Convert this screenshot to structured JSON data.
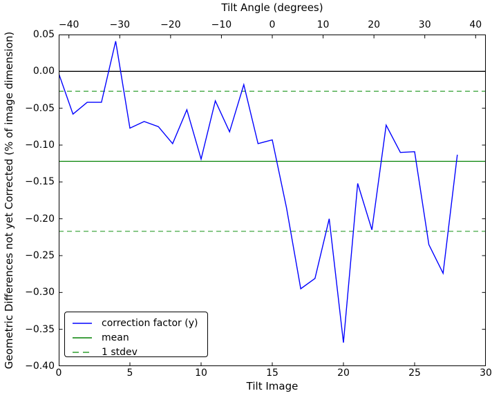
{
  "figure": {
    "background": "#ffffff"
  },
  "chart_data": {
    "type": "line",
    "top_axis": {
      "label": "Tilt Angle (degrees)",
      "range": [
        -42,
        42
      ],
      "ticks": [
        -40,
        -30,
        -20,
        -10,
        0,
        10,
        20,
        30,
        40
      ],
      "tick_labels": [
        "−40",
        "−30",
        "−20",
        "−10",
        "0",
        "10",
        "20",
        "30",
        "40"
      ]
    },
    "x_axis": {
      "label": "Tilt Image",
      "range": [
        0,
        30
      ],
      "ticks": [
        0,
        5,
        10,
        15,
        20,
        25,
        30
      ],
      "tick_labels": [
        "0",
        "5",
        "10",
        "15",
        "20",
        "25",
        "30"
      ]
    },
    "y_axis": {
      "label": "Geometric Differences not yet Corrected (% of image dimension)",
      "range": [
        -0.4,
        0.05
      ],
      "ticks": [
        0.05,
        0.0,
        -0.05,
        -0.1,
        -0.15,
        -0.2,
        -0.25,
        -0.3,
        -0.35,
        -0.4
      ],
      "tick_labels": [
        "0.05",
        "0.00",
        "−0.05",
        "−0.10",
        "−0.15",
        "−0.20",
        "−0.25",
        "−0.30",
        "−0.35",
        "−0.40"
      ]
    },
    "grid": false,
    "legend_position": "lower-left",
    "series": [
      {
        "name": "correction factor (y)",
        "color": "#0000ff",
        "style": "solid",
        "x": [
          0,
          1,
          2,
          3,
          4,
          5,
          6,
          7,
          8,
          9,
          10,
          11,
          12,
          13,
          14,
          15,
          16,
          17,
          18,
          19,
          20,
          21,
          22,
          23,
          24,
          25,
          26,
          27,
          28
        ],
        "y": [
          -0.003,
          -0.058,
          -0.042,
          -0.042,
          0.041,
          -0.077,
          -0.068,
          -0.075,
          -0.098,
          -0.052,
          -0.119,
          -0.04,
          -0.082,
          -0.018,
          -0.098,
          -0.093,
          -0.185,
          -0.295,
          -0.281,
          -0.2,
          -0.368,
          -0.152,
          -0.215,
          -0.073,
          -0.11,
          -0.109,
          -0.235,
          -0.274,
          -0.113
        ]
      },
      {
        "name": "mean",
        "color": "#008000",
        "style": "solid",
        "value": -0.122
      },
      {
        "name": "1 stdev",
        "color": "#2e9e2e",
        "style": "dashed",
        "mean": -0.122,
        "stdev": 0.095,
        "values": [
          -0.027,
          -0.217
        ]
      }
    ],
    "reference_lines": {
      "zero_line": {
        "value": 0.0,
        "color": "#000000"
      }
    }
  }
}
